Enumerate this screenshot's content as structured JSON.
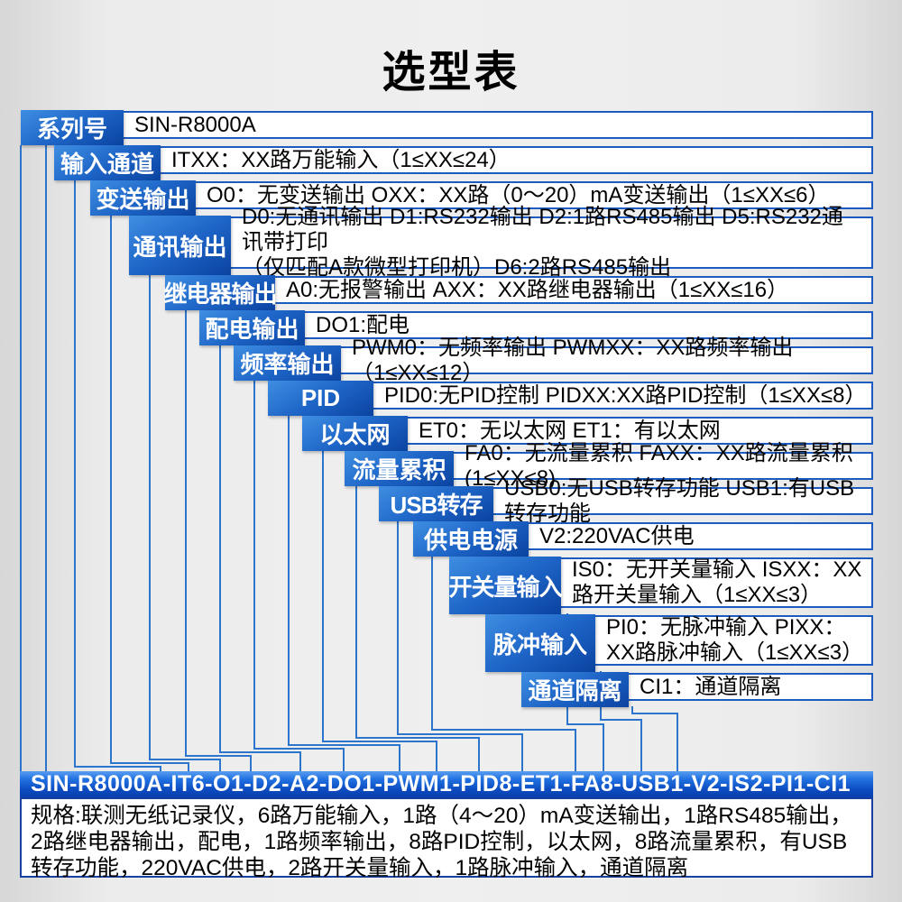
{
  "title": "选型表",
  "rows": [
    {
      "key": "series",
      "label": "系列号",
      "desc": "SIN-R8000A"
    },
    {
      "key": "input-channels",
      "label": "输入通道",
      "desc": "ITXX：XX路万能输入（1≤XX≤24）"
    },
    {
      "key": "transmit-output",
      "label": "变送输出",
      "desc": "O0：无变送输出 OXX：XX路（0～20）mA变送输出（1≤XX≤6）"
    },
    {
      "key": "comm-output",
      "label": "通讯输出",
      "desc": "D0:无通讯输出 D1:RS232输出 D2:1路RS485输出 D5:RS232通讯带打印\n（仅匹配A款微型打印机）D6:2路RS485输出"
    },
    {
      "key": "relay-output",
      "label": "继电器输出",
      "desc": "A0:无报警输出 AXX：XX路继电器输出（1≤XX≤16）"
    },
    {
      "key": "power-dist-output",
      "label": "配电输出",
      "desc": "DO1:配电"
    },
    {
      "key": "freq-output",
      "label": "频率输出",
      "desc": "PWM0：无频率输出 PWMXX：XX路频率输出（1≤XX≤12）"
    },
    {
      "key": "pid",
      "label": "PID",
      "desc": "PID0:无PID控制 PIDXX:XX路PID控制（1≤XX≤8）"
    },
    {
      "key": "ethernet",
      "label": "以太网",
      "desc": "ET0：无以太网 ET1：有以太网"
    },
    {
      "key": "flow-accumulation",
      "label": "流量累积",
      "desc": "FA0：无流量累积 FAXX：XX路流量累积(1≤XX≤8)"
    },
    {
      "key": "usb-transfer",
      "label": "USB转存",
      "desc": "USB0:无USB转存功能 USB1:有USB转存功能"
    },
    {
      "key": "power-supply",
      "label": "供电电源",
      "desc": "V2:220VAC供电"
    },
    {
      "key": "switch-input",
      "label": "开关量输入",
      "desc": "IS0：无开关量输入 ISXX：XX路开关量输入（1≤XX≤3）"
    },
    {
      "key": "pulse-input",
      "label": "脉冲输入",
      "desc": "PI0：无脉冲输入 PIXX：XX路脉冲输入（1≤XX≤3）"
    },
    {
      "key": "channel-isolation",
      "label": "通道隔离",
      "desc": "CI1：通道隔离"
    }
  ],
  "model_code": "SIN-R8000A-IT6-O1-D2-A2-DO1-PWM1-PID8-ET1-FA8-USB1-V2-IS2-PI1-CI1",
  "spec": "规格:联测无纸记录仪，6路万能输入，1路（4～20）mA变送输出，1路RS485输出，2路继电器输出，配电，1路频率输出，8路PID控制，以太网，8路流量累积，有USB转存功能，220VAC供电，2路开关量输入，1路脉冲输入，通道隔离",
  "colors": {
    "label_gradient_top": "#3f8ee2",
    "label_gradient_bottom": "#0b43a0",
    "bar_gradient_top": "#5a9df0",
    "bar_gradient_bottom": "#0a3fae",
    "box_border": "#1c5cc0",
    "spec_border": "#17409f",
    "leader_line": "#2d74cc",
    "text": "#000000",
    "label_text": "#ffffff"
  }
}
